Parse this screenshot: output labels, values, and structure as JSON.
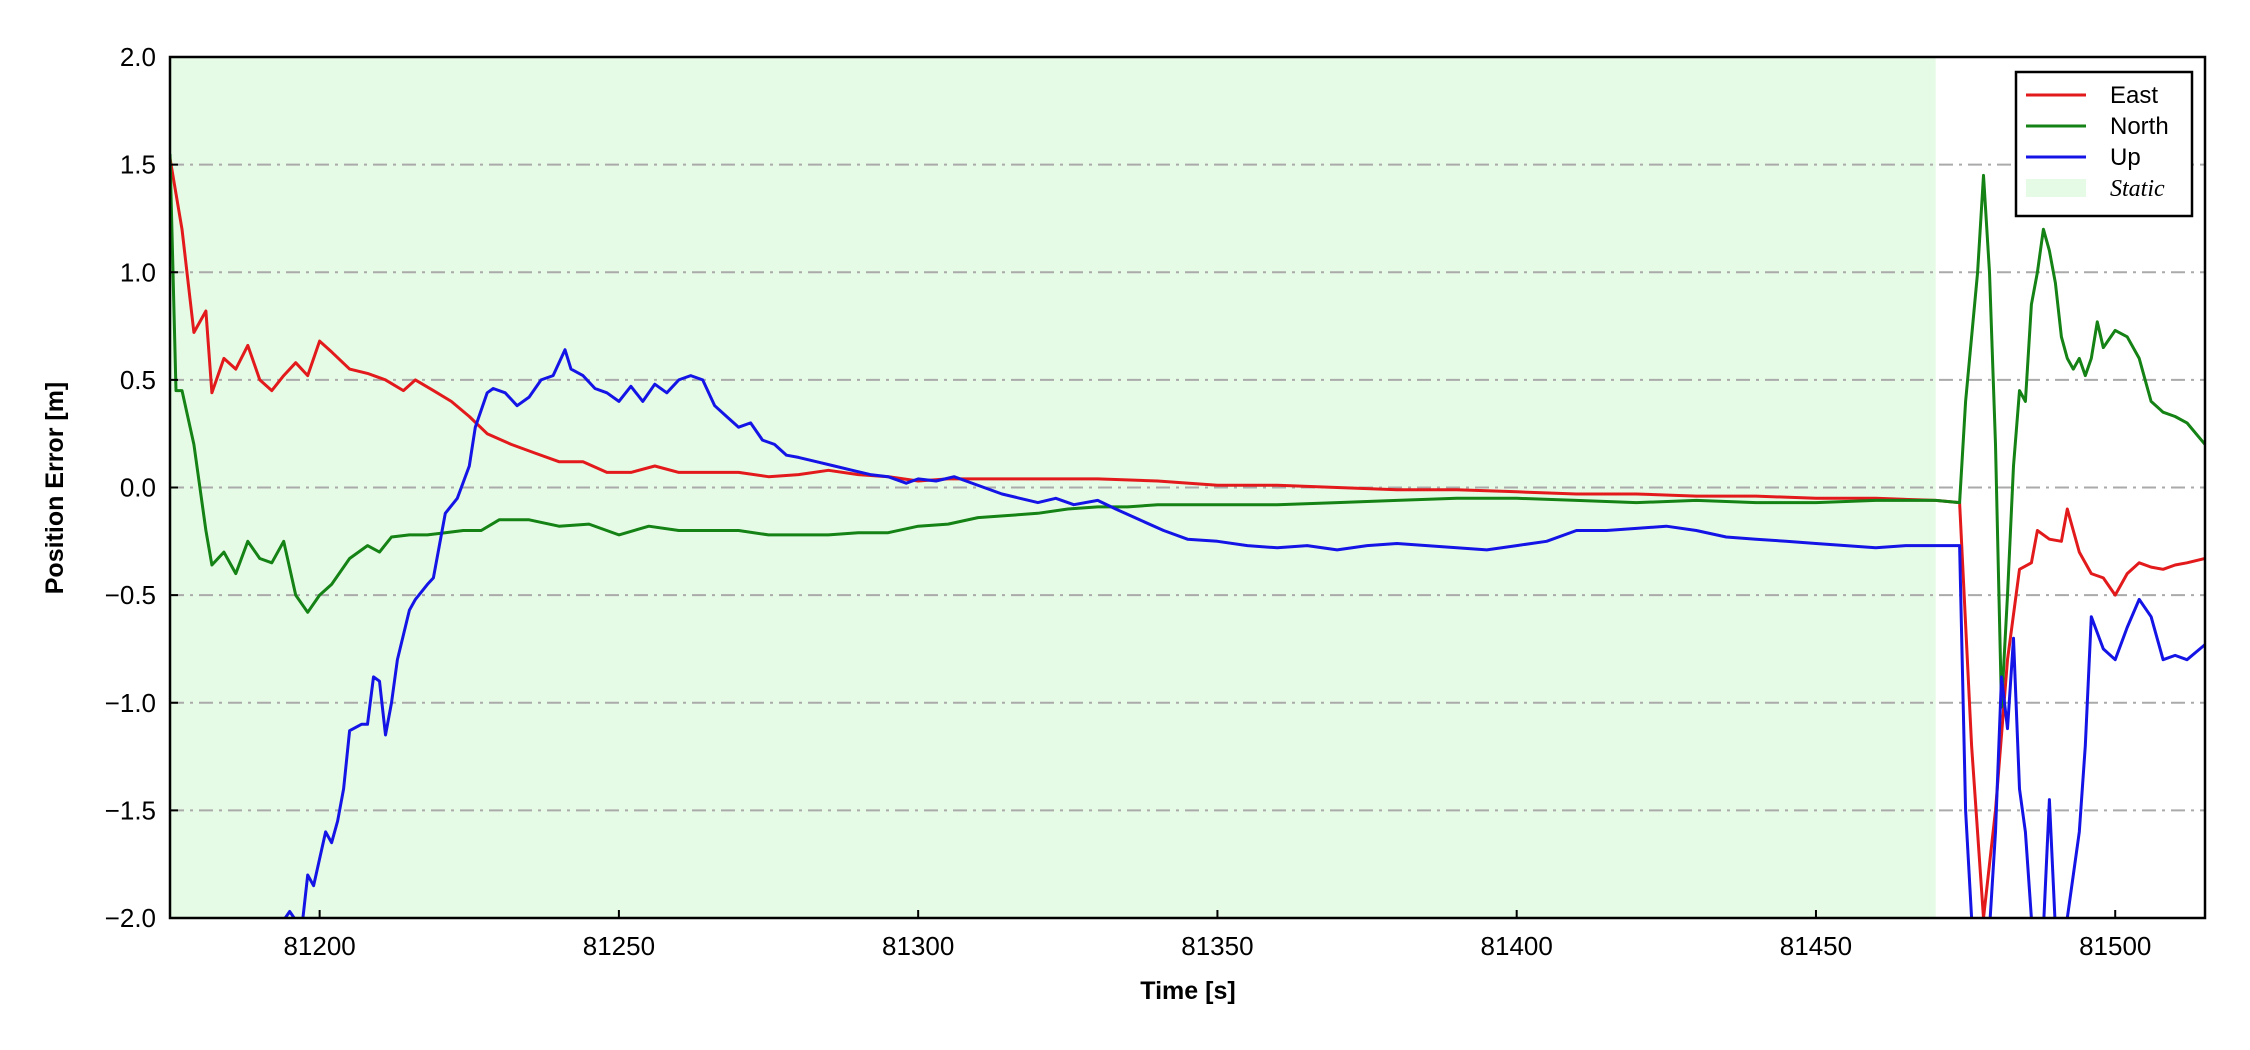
{
  "chart_data": {
    "type": "line",
    "title": "",
    "xlabel": "Time [s]",
    "ylabel": "Position Error [m]",
    "xlim": [
      81175,
      81515
    ],
    "ylim": [
      -2.0,
      2.0
    ],
    "xticks": [
      81200,
      81250,
      81300,
      81350,
      81400,
      81450,
      81500
    ],
    "xtick_labels": [
      "81200",
      "81250",
      "81300",
      "81350",
      "81400",
      "81450",
      "81500"
    ],
    "yticks": [
      2.0,
      1.5,
      1.0,
      0.5,
      0.0,
      -0.5,
      -1.0,
      -1.5,
      -2.0
    ],
    "ytick_labels": [
      "2.0",
      "1.5",
      "1.0",
      "0.5",
      "0.0",
      "−0.5",
      "−1.0",
      "−1.5",
      "−2.0"
    ],
    "grid": "horizontal dash-dot",
    "legend_position": "top-right",
    "shaded_region": {
      "label": "Static",
      "x_range": [
        81175,
        81470
      ],
      "color": "#e6fbe6"
    },
    "series": [
      {
        "name": "East",
        "color": "#e31a1c",
        "points": [
          [
            81175,
            1.53
          ],
          [
            81177,
            1.2
          ],
          [
            81179,
            0.72
          ],
          [
            81181,
            0.82
          ],
          [
            81182,
            0.44
          ],
          [
            81184,
            0.6
          ],
          [
            81186,
            0.55
          ],
          [
            81188,
            0.66
          ],
          [
            81190,
            0.5
          ],
          [
            81192,
            0.45
          ],
          [
            81194,
            0.52
          ],
          [
            81196,
            0.58
          ],
          [
            81198,
            0.52
          ],
          [
            81200,
            0.68
          ],
          [
            81202,
            0.63
          ],
          [
            81205,
            0.55
          ],
          [
            81208,
            0.53
          ],
          [
            81211,
            0.5
          ],
          [
            81214,
            0.45
          ],
          [
            81216,
            0.5
          ],
          [
            81219,
            0.45
          ],
          [
            81222,
            0.4
          ],
          [
            81225,
            0.33
          ],
          [
            81228,
            0.25
          ],
          [
            81232,
            0.2
          ],
          [
            81236,
            0.16
          ],
          [
            81240,
            0.12
          ],
          [
            81244,
            0.12
          ],
          [
            81248,
            0.07
          ],
          [
            81252,
            0.07
          ],
          [
            81256,
            0.1
          ],
          [
            81260,
            0.07
          ],
          [
            81265,
            0.07
          ],
          [
            81270,
            0.07
          ],
          [
            81275,
            0.05
          ],
          [
            81280,
            0.06
          ],
          [
            81285,
            0.08
          ],
          [
            81290,
            0.06
          ],
          [
            81295,
            0.05
          ],
          [
            81300,
            0.03
          ],
          [
            81305,
            0.04
          ],
          [
            81310,
            0.04
          ],
          [
            81315,
            0.04
          ],
          [
            81320,
            0.04
          ],
          [
            81330,
            0.04
          ],
          [
            81340,
            0.03
          ],
          [
            81350,
            0.01
          ],
          [
            81360,
            0.01
          ],
          [
            81370,
            0.0
          ],
          [
            81380,
            -0.01
          ],
          [
            81390,
            -0.01
          ],
          [
            81400,
            -0.02
          ],
          [
            81410,
            -0.03
          ],
          [
            81420,
            -0.03
          ],
          [
            81430,
            -0.04
          ],
          [
            81440,
            -0.04
          ],
          [
            81450,
            -0.05
          ],
          [
            81460,
            -0.05
          ],
          [
            81470,
            -0.06
          ],
          [
            81474,
            -0.07
          ],
          [
            81476,
            -1.2
          ],
          [
            81478,
            -2.0
          ],
          [
            81480,
            -1.5
          ],
          [
            81482,
            -0.8
          ],
          [
            81484,
            -0.38
          ],
          [
            81486,
            -0.35
          ],
          [
            81487,
            -0.2
          ],
          [
            81489,
            -0.24
          ],
          [
            81491,
            -0.25
          ],
          [
            81492,
            -0.1
          ],
          [
            81494,
            -0.3
          ],
          [
            81496,
            -0.4
          ],
          [
            81498,
            -0.42
          ],
          [
            81500,
            -0.5
          ],
          [
            81502,
            -0.4
          ],
          [
            81504,
            -0.35
          ],
          [
            81506,
            -0.37
          ],
          [
            81508,
            -0.38
          ],
          [
            81510,
            -0.36
          ],
          [
            81512,
            -0.35
          ],
          [
            81515,
            -0.33
          ]
        ]
      },
      {
        "name": "North",
        "color": "#148214",
        "points": [
          [
            81175,
            1.55
          ],
          [
            81176,
            0.45
          ],
          [
            81177,
            0.45
          ],
          [
            81179,
            0.2
          ],
          [
            81181,
            -0.2
          ],
          [
            81182,
            -0.36
          ],
          [
            81184,
            -0.3
          ],
          [
            81186,
            -0.4
          ],
          [
            81188,
            -0.25
          ],
          [
            81190,
            -0.33
          ],
          [
            81192,
            -0.35
          ],
          [
            81194,
            -0.25
          ],
          [
            81196,
            -0.5
          ],
          [
            81198,
            -0.58
          ],
          [
            81200,
            -0.5
          ],
          [
            81202,
            -0.45
          ],
          [
            81205,
            -0.33
          ],
          [
            81208,
            -0.27
          ],
          [
            81210,
            -0.3
          ],
          [
            81212,
            -0.23
          ],
          [
            81215,
            -0.22
          ],
          [
            81218,
            -0.22
          ],
          [
            81221,
            -0.21
          ],
          [
            81224,
            -0.2
          ],
          [
            81227,
            -0.2
          ],
          [
            81230,
            -0.15
          ],
          [
            81235,
            -0.15
          ],
          [
            81240,
            -0.18
          ],
          [
            81245,
            -0.17
          ],
          [
            81250,
            -0.22
          ],
          [
            81255,
            -0.18
          ],
          [
            81260,
            -0.2
          ],
          [
            81265,
            -0.2
          ],
          [
            81270,
            -0.2
          ],
          [
            81275,
            -0.22
          ],
          [
            81280,
            -0.22
          ],
          [
            81285,
            -0.22
          ],
          [
            81290,
            -0.21
          ],
          [
            81295,
            -0.21
          ],
          [
            81300,
            -0.18
          ],
          [
            81305,
            -0.17
          ],
          [
            81310,
            -0.14
          ],
          [
            81315,
            -0.13
          ],
          [
            81320,
            -0.12
          ],
          [
            81325,
            -0.1
          ],
          [
            81330,
            -0.09
          ],
          [
            81335,
            -0.09
          ],
          [
            81340,
            -0.08
          ],
          [
            81350,
            -0.08
          ],
          [
            81360,
            -0.08
          ],
          [
            81370,
            -0.07
          ],
          [
            81380,
            -0.06
          ],
          [
            81390,
            -0.05
          ],
          [
            81400,
            -0.05
          ],
          [
            81410,
            -0.06
          ],
          [
            81420,
            -0.07
          ],
          [
            81430,
            -0.06
          ],
          [
            81440,
            -0.07
          ],
          [
            81450,
            -0.07
          ],
          [
            81460,
            -0.06
          ],
          [
            81470,
            -0.06
          ],
          [
            81474,
            -0.07
          ],
          [
            81475,
            0.4
          ],
          [
            81477,
            1.0
          ],
          [
            81478,
            1.45
          ],
          [
            81479,
            1.0
          ],
          [
            81480,
            0.2
          ],
          [
            81481,
            -1.02
          ],
          [
            81482,
            -0.5
          ],
          [
            81483,
            0.1
          ],
          [
            81484,
            0.45
          ],
          [
            81485,
            0.4
          ],
          [
            81486,
            0.85
          ],
          [
            81487,
            1.0
          ],
          [
            81488,
            1.2
          ],
          [
            81489,
            1.1
          ],
          [
            81490,
            0.95
          ],
          [
            81491,
            0.7
          ],
          [
            81492,
            0.6
          ],
          [
            81493,
            0.55
          ],
          [
            81494,
            0.6
          ],
          [
            81495,
            0.52
          ],
          [
            81496,
            0.6
          ],
          [
            81497,
            0.77
          ],
          [
            81498,
            0.65
          ],
          [
            81500,
            0.73
          ],
          [
            81502,
            0.7
          ],
          [
            81504,
            0.6
          ],
          [
            81506,
            0.4
          ],
          [
            81508,
            0.35
          ],
          [
            81510,
            0.33
          ],
          [
            81512,
            0.3
          ],
          [
            81515,
            0.2
          ]
        ]
      },
      {
        "name": "Up",
        "color": "#1414e6",
        "points": [
          [
            81193,
            -2.05
          ],
          [
            81195,
            -1.97
          ],
          [
            81197,
            -2.05
          ],
          [
            81198,
            -1.8
          ],
          [
            81199,
            -1.85
          ],
          [
            81201,
            -1.6
          ],
          [
            81202,
            -1.65
          ],
          [
            81203,
            -1.55
          ],
          [
            81204,
            -1.4
          ],
          [
            81205,
            -1.13
          ],
          [
            81207,
            -1.1
          ],
          [
            81208,
            -1.1
          ],
          [
            81209,
            -0.88
          ],
          [
            81210,
            -0.9
          ],
          [
            81211,
            -1.15
          ],
          [
            81212,
            -1.0
          ],
          [
            81213,
            -0.8
          ],
          [
            81215,
            -0.57
          ],
          [
            81216,
            -0.52
          ],
          [
            81218,
            -0.45
          ],
          [
            81219,
            -0.42
          ],
          [
            81221,
            -0.12
          ],
          [
            81223,
            -0.05
          ],
          [
            81225,
            0.1
          ],
          [
            81226,
            0.28
          ],
          [
            81228,
            0.44
          ],
          [
            81229,
            0.46
          ],
          [
            81231,
            0.44
          ],
          [
            81233,
            0.38
          ],
          [
            81235,
            0.42
          ],
          [
            81237,
            0.5
          ],
          [
            81239,
            0.52
          ],
          [
            81241,
            0.64
          ],
          [
            81242,
            0.55
          ],
          [
            81244,
            0.52
          ],
          [
            81246,
            0.46
          ],
          [
            81248,
            0.44
          ],
          [
            81250,
            0.4
          ],
          [
            81252,
            0.47
          ],
          [
            81254,
            0.4
          ],
          [
            81256,
            0.48
          ],
          [
            81258,
            0.44
          ],
          [
            81260,
            0.5
          ],
          [
            81262,
            0.52
          ],
          [
            81264,
            0.5
          ],
          [
            81266,
            0.38
          ],
          [
            81268,
            0.33
          ],
          [
            81270,
            0.28
          ],
          [
            81272,
            0.3
          ],
          [
            81274,
            0.22
          ],
          [
            81276,
            0.2
          ],
          [
            81278,
            0.15
          ],
          [
            81280,
            0.14
          ],
          [
            81283,
            0.12
          ],
          [
            81286,
            0.1
          ],
          [
            81289,
            0.08
          ],
          [
            81292,
            0.06
          ],
          [
            81295,
            0.05
          ],
          [
            81298,
            0.02
          ],
          [
            81300,
            0.04
          ],
          [
            81303,
            0.03
          ],
          [
            81306,
            0.05
          ],
          [
            81308,
            0.03
          ],
          [
            81311,
            0.0
          ],
          [
            81314,
            -0.03
          ],
          [
            81317,
            -0.05
          ],
          [
            81320,
            -0.07
          ],
          [
            81323,
            -0.05
          ],
          [
            81326,
            -0.08
          ],
          [
            81330,
            -0.06
          ],
          [
            81333,
            -0.1
          ],
          [
            81337,
            -0.15
          ],
          [
            81341,
            -0.2
          ],
          [
            81345,
            -0.24
          ],
          [
            81350,
            -0.25
          ],
          [
            81355,
            -0.27
          ],
          [
            81360,
            -0.28
          ],
          [
            81365,
            -0.27
          ],
          [
            81370,
            -0.29
          ],
          [
            81375,
            -0.27
          ],
          [
            81380,
            -0.26
          ],
          [
            81385,
            -0.27
          ],
          [
            81390,
            -0.28
          ],
          [
            81395,
            -0.29
          ],
          [
            81400,
            -0.27
          ],
          [
            81405,
            -0.25
          ],
          [
            81410,
            -0.2
          ],
          [
            81415,
            -0.2
          ],
          [
            81420,
            -0.19
          ],
          [
            81425,
            -0.18
          ],
          [
            81430,
            -0.2
          ],
          [
            81435,
            -0.23
          ],
          [
            81440,
            -0.24
          ],
          [
            81445,
            -0.25
          ],
          [
            81450,
            -0.26
          ],
          [
            81455,
            -0.27
          ],
          [
            81460,
            -0.28
          ],
          [
            81465,
            -0.27
          ],
          [
            81470,
            -0.27
          ],
          [
            81474,
            -0.27
          ],
          [
            81475,
            -1.5
          ],
          [
            81476,
            -2.0
          ],
          [
            81477,
            -2.05
          ],
          [
            81478,
            -2.05
          ],
          [
            81479,
            -2.05
          ],
          [
            81480,
            -1.6
          ],
          [
            81481,
            -0.88
          ],
          [
            81482,
            -1.12
          ],
          [
            81483,
            -0.7
          ],
          [
            81484,
            -1.4
          ],
          [
            81485,
            -1.6
          ],
          [
            81486,
            -2.0
          ],
          [
            81487,
            -2.05
          ],
          [
            81488,
            -2.05
          ],
          [
            81489,
            -1.45
          ],
          [
            81490,
            -2.05
          ],
          [
            81491,
            -2.05
          ],
          [
            81492,
            -2.0
          ],
          [
            81493,
            -1.8
          ],
          [
            81494,
            -1.6
          ],
          [
            81495,
            -1.2
          ],
          [
            81496,
            -0.6
          ],
          [
            81498,
            -0.75
          ],
          [
            81500,
            -0.8
          ],
          [
            81502,
            -0.65
          ],
          [
            81504,
            -0.52
          ],
          [
            81506,
            -0.6
          ],
          [
            81508,
            -0.8
          ],
          [
            81510,
            -0.78
          ],
          [
            81512,
            -0.8
          ],
          [
            81515,
            -0.73
          ]
        ]
      }
    ]
  }
}
